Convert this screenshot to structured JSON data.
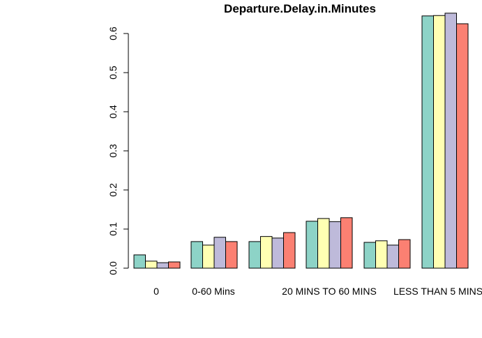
{
  "chart_data": {
    "type": "bar",
    "title": "Departure.Delay.in.Minutes",
    "xlabel": "",
    "ylabel": "",
    "ylim": [
      0,
      0.63
    ],
    "yticks": [
      "0.0",
      "0.1",
      "0.2",
      "0.3",
      "0.4",
      "0.5",
      "0.6"
    ],
    "categories": [
      "0",
      "0-60 Mins",
      "",
      "20 MINS TO 60 MINS",
      "",
      "LESS THAN 5 MINS"
    ],
    "series": [
      {
        "color": "#8DD3C7",
        "values": [
          0.034,
          0.068,
          0.068,
          0.12,
          0.066,
          0.645
        ]
      },
      {
        "color": "#FFFFB3",
        "values": [
          0.018,
          0.059,
          0.081,
          0.127,
          0.07,
          0.646
        ]
      },
      {
        "color": "#BEBADA",
        "values": [
          0.014,
          0.079,
          0.077,
          0.119,
          0.059,
          0.652
        ]
      },
      {
        "color": "#FB8072",
        "values": [
          0.016,
          0.068,
          0.091,
          0.129,
          0.073,
          0.625
        ]
      }
    ],
    "grid": false,
    "legend": "none"
  }
}
